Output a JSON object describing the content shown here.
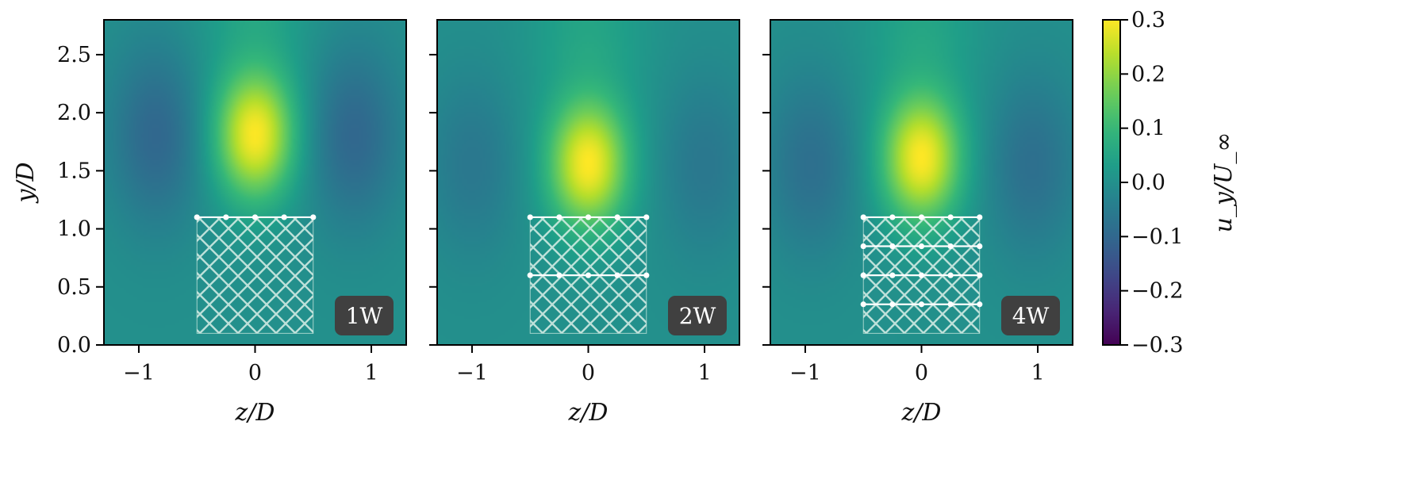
{
  "chart_data": [
    {
      "type": "heatmap",
      "panel_label": "1W",
      "xlabel": "z/D",
      "ylabel": "y/D",
      "xlim": [
        -1.3,
        1.3
      ],
      "ylim": [
        0.0,
        2.8
      ],
      "xticks": [
        -1,
        0,
        1
      ],
      "yticks": [
        0.0,
        0.5,
        1.0,
        1.5,
        2.0,
        2.5
      ],
      "field": {
        "background": 0.0,
        "plume": {
          "z": 0.0,
          "y": 1.8,
          "peak": 0.3
        },
        "side_lobes": {
          "z": 0.85,
          "y": 1.8,
          "value": -0.1
        }
      },
      "grid_region": {
        "z": [
          -0.5,
          0.5
        ],
        "y": [
          0.1,
          1.1
        ]
      },
      "grid_rows_y": [
        1.1
      ],
      "grid_points_z": [
        -0.5,
        -0.25,
        0.0,
        0.25,
        0.5
      ]
    },
    {
      "type": "heatmap",
      "panel_label": "2W",
      "xlabel": "z/D",
      "xlim": [
        -1.3,
        1.3
      ],
      "ylim": [
        0.0,
        2.8
      ],
      "xticks": [
        -1,
        0,
        1
      ],
      "yticks": [
        0.0,
        0.5,
        1.0,
        1.5,
        2.0,
        2.5
      ],
      "field": {
        "background": 0.0,
        "plume": {
          "z": 0.0,
          "y": 1.55,
          "peak": 0.3
        },
        "side_lobes": {
          "z": 1.0,
          "y": 1.55,
          "value": -0.06
        }
      },
      "grid_region": {
        "z": [
          -0.5,
          0.5
        ],
        "y": [
          0.1,
          1.1
        ]
      },
      "grid_rows_y": [
        1.1,
        0.6
      ],
      "grid_points_z": [
        -0.5,
        -0.25,
        0.0,
        0.25,
        0.5
      ]
    },
    {
      "type": "heatmap",
      "panel_label": "4W",
      "xlabel": "z/D",
      "xlim": [
        -1.3,
        1.3
      ],
      "ylim": [
        0.0,
        2.8
      ],
      "xticks": [
        -1,
        0,
        1
      ],
      "yticks": [
        0.0,
        0.5,
        1.0,
        1.5,
        2.0,
        2.5
      ],
      "field": {
        "background": 0.0,
        "plume": {
          "z": 0.0,
          "y": 1.6,
          "peak": 0.3
        },
        "side_lobes": {
          "z": 0.95,
          "y": 1.55,
          "value": -0.08
        }
      },
      "grid_region": {
        "z": [
          -0.5,
          0.5
        ],
        "y": [
          0.1,
          1.1
        ]
      },
      "grid_rows_y": [
        1.1,
        0.85,
        0.6,
        0.35
      ],
      "grid_points_z": [
        -0.5,
        -0.25,
        0.0,
        0.25,
        0.5
      ]
    }
  ],
  "colorbar": {
    "label": "u_y/U_∞",
    "min": -0.3,
    "max": 0.3,
    "colormap": "viridis",
    "ticks": [
      0.3,
      0.2,
      0.1,
      0.0,
      -0.1,
      -0.2,
      -0.3
    ]
  },
  "colors": {
    "badge_bg": "#404040",
    "grid_line": "#ffffff",
    "hatch": "#d8efe6"
  }
}
